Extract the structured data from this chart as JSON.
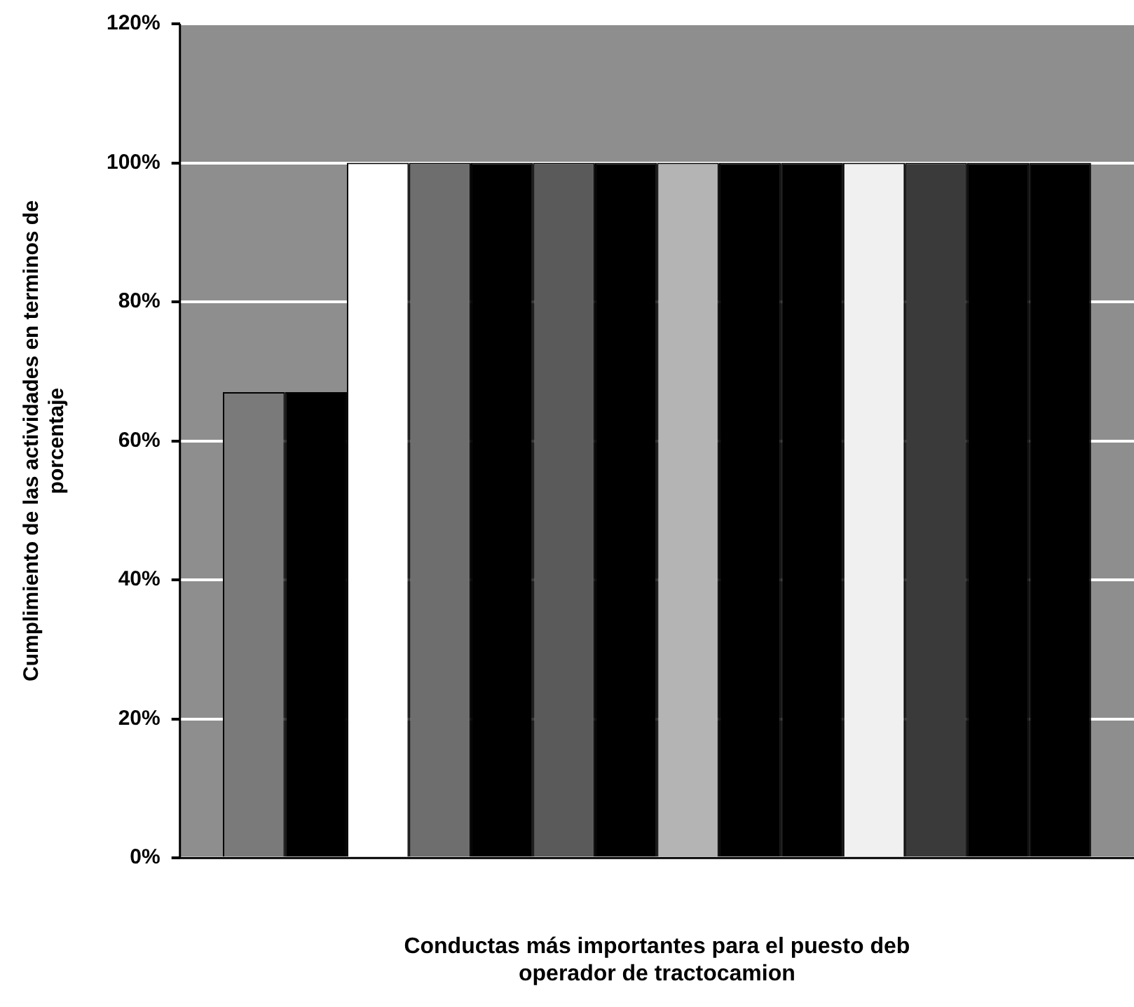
{
  "chart_data": {
    "type": "bar",
    "xlabel": "Conductas más importantes para el puesto deb\noperador de tractocamion",
    "ylabel": "Cumplimiento de las actividades en terminos de\nporcentaje",
    "categories": [
      null
    ],
    "series": [
      {
        "color": "#7a7a7a",
        "values": [
          67
        ]
      },
      {
        "color": "#000000",
        "values": [
          67
        ]
      },
      {
        "color": "#ffffff",
        "values": [
          100
        ]
      },
      {
        "color": "#6e6e6e",
        "values": [
          100
        ]
      },
      {
        "color": "#000000",
        "values": [
          100
        ]
      },
      {
        "color": "#5a5a5a",
        "values": [
          100
        ]
      },
      {
        "color": "#000000",
        "values": [
          100
        ]
      },
      {
        "color": "#b4b4b4",
        "values": [
          100
        ]
      },
      {
        "color": "#000000",
        "values": [
          100
        ]
      },
      {
        "color": "#000000",
        "values": [
          100
        ]
      },
      {
        "color": "#f0f0f0",
        "values": [
          100
        ]
      },
      {
        "color": "#3a3a3a",
        "values": [
          100
        ]
      },
      {
        "color": "#000000",
        "values": [
          100
        ]
      },
      {
        "color": "#000000",
        "values": [
          100
        ]
      }
    ],
    "ylim": [
      0,
      120
    ],
    "yticks": [
      {
        "value": 0,
        "label": "0%"
      },
      {
        "value": 20,
        "label": "20%"
      },
      {
        "value": 40,
        "label": "40%"
      },
      {
        "value": 60,
        "label": "60%"
      },
      {
        "value": 80,
        "label": "80%"
      },
      {
        "value": 100,
        "label": "100%"
      },
      {
        "value": 120,
        "label": "120%"
      }
    ],
    "grid": "y",
    "legend": false
  }
}
